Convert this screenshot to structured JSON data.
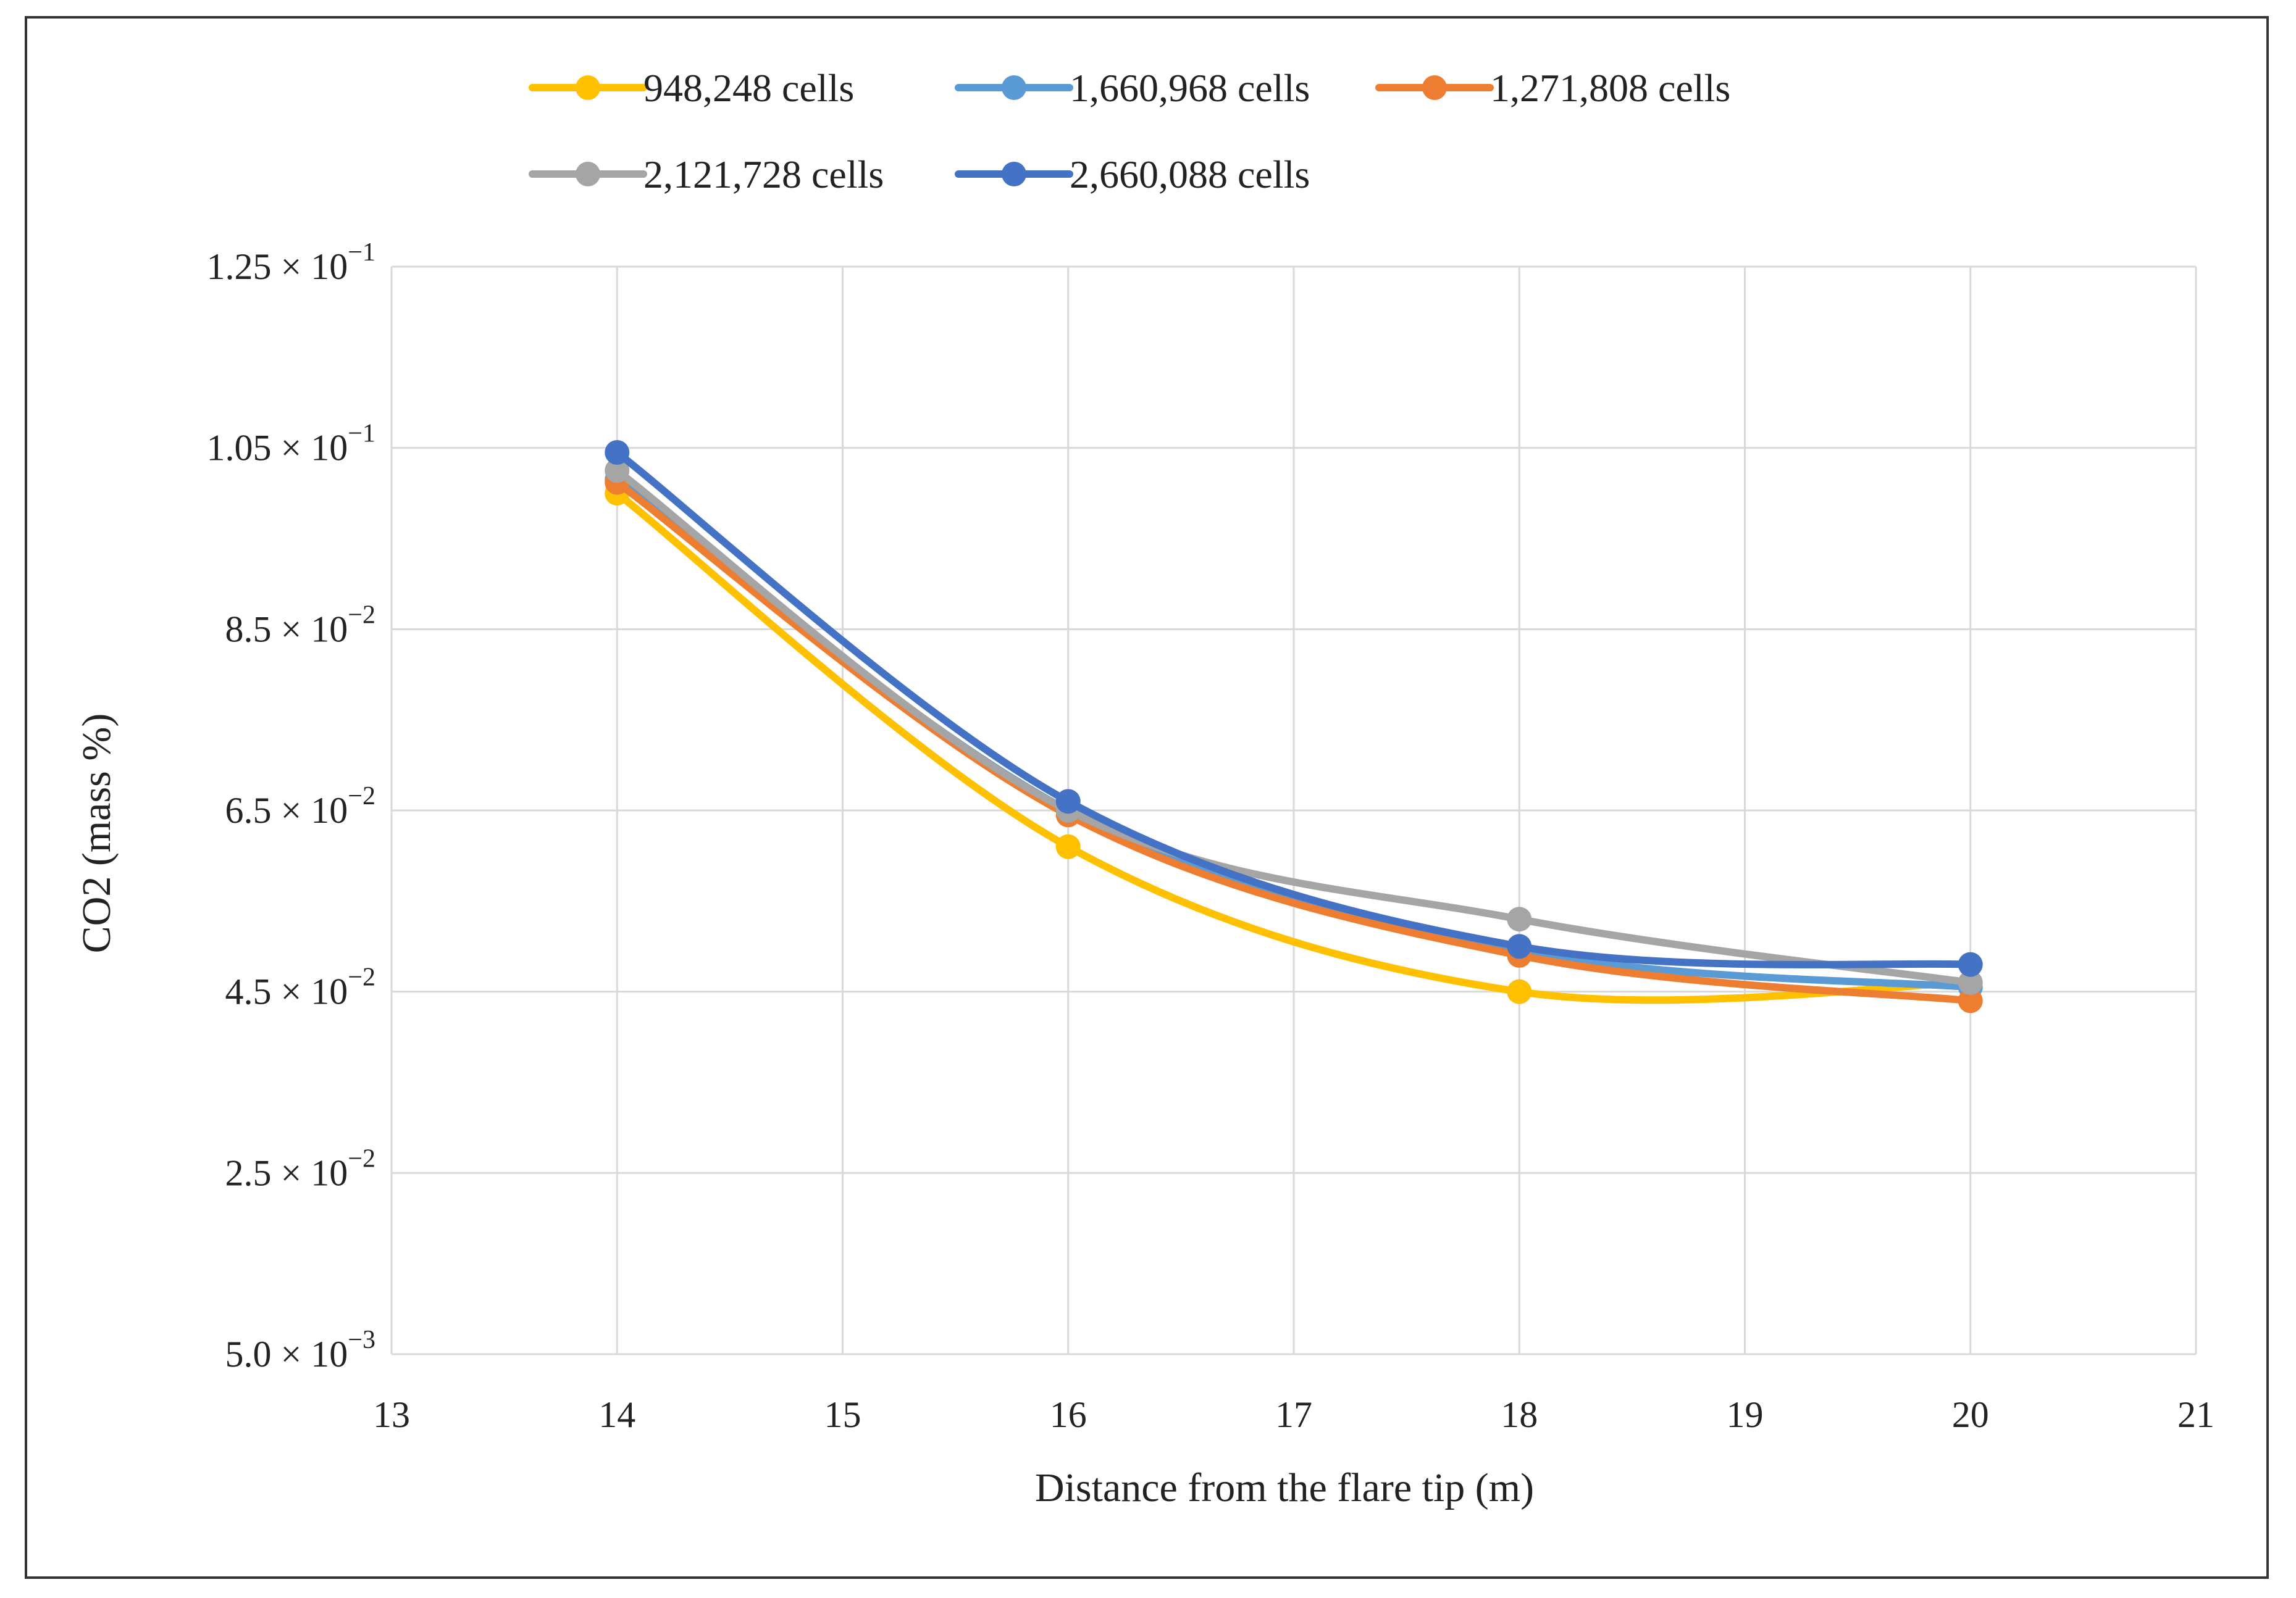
{
  "chart_data": {
    "type": "line",
    "title": "",
    "xlabel": "Distance from the flare tip (m)",
    "ylabel": "CO2 (mass %)",
    "xlim": [
      13,
      21
    ],
    "ylim": [
      0.005,
      0.125
    ],
    "xticks": [
      13,
      14,
      15,
      16,
      17,
      18,
      19,
      20,
      21
    ],
    "xtick_labels": [
      "13",
      "14",
      "15",
      "16",
      "17",
      "18",
      "19",
      "20",
      "21"
    ],
    "yticks": [
      0.005,
      0.025,
      0.045,
      0.065,
      0.085,
      0.105,
      0.125
    ],
    "ytick_labels": [
      {
        "mantissa": "5.0",
        "exp": "−3"
      },
      {
        "mantissa": "2.5",
        "exp": "−2"
      },
      {
        "mantissa": "4.5",
        "exp": "−2"
      },
      {
        "mantissa": "6.5",
        "exp": "−2"
      },
      {
        "mantissa": "8.5",
        "exp": "−2"
      },
      {
        "mantissa": "1.05",
        "exp": "−1"
      },
      {
        "mantissa": "1.25",
        "exp": "−1"
      }
    ],
    "ytick_times": "× 10",
    "grid": true,
    "legend_position": "top",
    "x": [
      14,
      16,
      18,
      20
    ],
    "series": [
      {
        "name": "948,248 cells",
        "color": "#FFC000",
        "values": [
          0.1,
          0.061,
          0.045,
          0.046
        ]
      },
      {
        "name": "1,660,968 cells",
        "color": "#5B9BD5",
        "values": [
          0.1015,
          0.065,
          0.0495,
          0.0455
        ]
      },
      {
        "name": "1,271,808 cells",
        "color": "#ED7D31",
        "values": [
          0.1012,
          0.0645,
          0.049,
          0.044
        ]
      },
      {
        "name": "2,121,728 cells",
        "color": "#A5A5A5",
        "values": [
          0.1025,
          0.065,
          0.053,
          0.046
        ]
      },
      {
        "name": "2,660,088 cells",
        "color": "#4472C4",
        "values": [
          0.1045,
          0.066,
          0.05,
          0.048
        ]
      }
    ]
  }
}
